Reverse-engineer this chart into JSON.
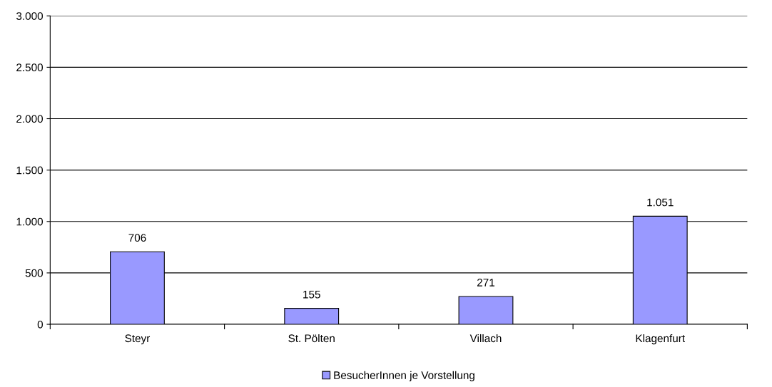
{
  "chart_data": {
    "type": "bar",
    "categories": [
      "Steyr",
      "St. Pölten",
      "Villach",
      "Klagenfurt"
    ],
    "series": [
      {
        "name": "BesucherInnen je Vorstellung",
        "color": "#9999ff",
        "values": [
          706,
          155,
          271,
          1051
        ],
        "value_labels": [
          "706",
          "155",
          "271",
          "1.051"
        ]
      }
    ],
    "ylim": [
      0,
      3000
    ],
    "yticks": [
      {
        "value": 0,
        "label": "0"
      },
      {
        "value": 500,
        "label": "500"
      },
      {
        "value": 1000,
        "label": "1.000"
      },
      {
        "value": 1500,
        "label": "1.500"
      },
      {
        "value": 2000,
        "label": "2.000"
      },
      {
        "value": 2500,
        "label": "2.500"
      },
      {
        "value": 3000,
        "label": "3.000"
      }
    ],
    "grid": "y",
    "legend": "bottom"
  }
}
